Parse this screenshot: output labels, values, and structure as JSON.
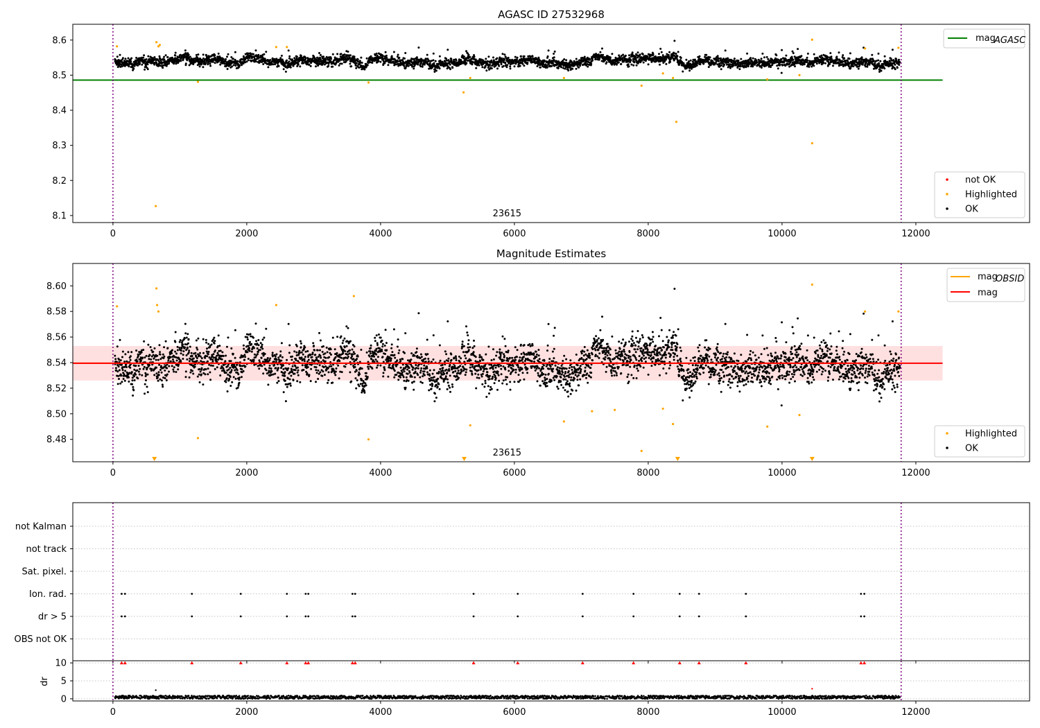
{
  "chart_data": [
    {
      "type": "scatter",
      "title": "AGASC ID 27532968",
      "xlim": [
        -600,
        13700
      ],
      "ylim": [
        8.08,
        8.645
      ],
      "xticks": [
        0,
        2000,
        4000,
        6000,
        8000,
        10000,
        12000
      ],
      "yticks": [
        8.1,
        8.2,
        8.3,
        8.4,
        8.5,
        8.6
      ],
      "ytick_labels": [
        "8.1",
        "8.2",
        "8.3",
        "8.4",
        "8.5",
        "8.6"
      ],
      "obs_boundaries": [
        0,
        11780
      ],
      "annotation": {
        "text": "23615",
        "x": 5890
      },
      "lines": [
        {
          "name": "mag$_{AGASC}$",
          "label_main": "mag",
          "label_sub": "AGASC",
          "y": 8.486,
          "x_range": [
            -600,
            12400
          ],
          "color": "#008000"
        }
      ],
      "series": [
        {
          "name": "not OK",
          "color": "#ff0000",
          "points": []
        },
        {
          "name": "Highlighted",
          "color": "#ffa500",
          "points": [
            [
              60,
              8.582
            ],
            [
              640,
              8.127
            ],
            [
              650,
              8.594
            ],
            [
              680,
              8.582
            ],
            [
              700,
              8.586
            ],
            [
              1270,
              8.481
            ],
            [
              2440,
              8.58
            ],
            [
              2600,
              8.58
            ],
            [
              3820,
              8.479
            ],
            [
              5240,
              8.451
            ],
            [
              5340,
              8.492
            ],
            [
              6740,
              8.492
            ],
            [
              7900,
              8.47
            ],
            [
              8220,
              8.505
            ],
            [
              8420,
              8.367
            ],
            [
              8370,
              8.492
            ],
            [
              9780,
              8.488
            ],
            [
              10260,
              8.5
            ],
            [
              10450,
              8.601
            ],
            [
              10450,
              8.306
            ],
            [
              11240,
              8.576
            ],
            [
              11740,
              8.578
            ]
          ]
        },
        {
          "name": "OK",
          "color": "#000000",
          "points": []
        }
      ],
      "legend_lines_position": "upper-right",
      "legend_points_position": "lower-right"
    },
    {
      "type": "scatter",
      "title": "Magnitude Estimates",
      "xlim": [
        -600,
        13700
      ],
      "ylim": [
        8.4625,
        8.6175
      ],
      "xticks": [
        0,
        2000,
        4000,
        6000,
        8000,
        10000,
        12000
      ],
      "yticks": [
        8.48,
        8.5,
        8.52,
        8.54,
        8.56,
        8.58,
        8.6
      ],
      "ytick_labels": [
        "8.48",
        "8.50",
        "8.52",
        "8.54",
        "8.56",
        "8.58",
        "8.60"
      ],
      "obs_boundaries": [
        0,
        11780
      ],
      "annotation": {
        "text": "23615",
        "x": 5890
      },
      "band": {
        "y_low": 8.526,
        "y_high": 8.553,
        "x_range": [
          -600,
          12400
        ],
        "color": "#ff0000",
        "opacity": 0.12
      },
      "lines": [
        {
          "name": "mag$_{OBSID}$",
          "label_main": "mag",
          "label_sub": "OBSID",
          "y": 8.5395,
          "x_range": [
            -600,
            11790
          ],
          "color": "#ffa500"
        },
        {
          "name": "mag",
          "label_main": "mag",
          "label_sub": "",
          "y": 8.5395,
          "x_range": [
            -600,
            12400
          ],
          "color": "#ff0000"
        }
      ],
      "series": [
        {
          "name": "Highlighted",
          "color": "#ffa500",
          "points": [
            [
              60,
              8.584
            ],
            [
              650,
              8.598
            ],
            [
              660,
              8.585
            ],
            [
              680,
              8.58
            ],
            [
              1270,
              8.481
            ],
            [
              2440,
              8.585
            ],
            [
              3600,
              8.592
            ],
            [
              3820,
              8.48
            ],
            [
              5340,
              8.491
            ],
            [
              6740,
              8.494
            ],
            [
              7160,
              8.502
            ],
            [
              7500,
              8.503
            ],
            [
              7900,
              8.471
            ],
            [
              8220,
              8.504
            ],
            [
              8370,
              8.492
            ],
            [
              9780,
              8.49
            ],
            [
              10260,
              8.499
            ],
            [
              10450,
              8.601
            ],
            [
              11240,
              8.58
            ],
            [
              11740,
              8.58
            ]
          ]
        },
        {
          "name": "OK",
          "color": "#000000",
          "points": []
        }
      ],
      "offscale_markers_x": [
        620,
        5250,
        8440,
        10450
      ],
      "legend_position": "upper-right / lower-right"
    },
    {
      "type": "scatter",
      "title": "",
      "xlim": [
        -600,
        13700
      ],
      "xticks": [
        0,
        2000,
        4000,
        6000,
        8000,
        10000,
        12000
      ],
      "categories": [
        "OBS not OK",
        "dr > 5",
        "Ion. rad.",
        "Sat. pixel.",
        "not track",
        "not Kalman"
      ],
      "obs_boundaries": [
        0,
        11780
      ],
      "flag_x": [
        130,
        180,
        1180,
        1910,
        2600,
        2880,
        2920,
        3580,
        3620,
        5390,
        6050,
        7020,
        7780,
        8470,
        8760,
        9460,
        11180,
        11230
      ],
      "flag_rows": [
        "dr > 5",
        "Ion. rad."
      ]
    },
    {
      "type": "scatter",
      "title": "",
      "ylabel": "dr",
      "xlim": [
        -600,
        13700
      ],
      "ylim": [
        -0.6,
        10.6
      ],
      "xticks": [
        0,
        2000,
        4000,
        6000,
        8000,
        10000,
        12000
      ],
      "yticks": [
        0,
        5,
        10
      ],
      "ytick_labels": [
        "0",
        "5",
        "10"
      ],
      "obs_boundaries": [
        0,
        11780
      ],
      "clipped_at_10_x": [
        130,
        180,
        1180,
        1910,
        2600,
        2880,
        2920,
        3580,
        3620,
        5390,
        6050,
        7020,
        7780,
        8470,
        8760,
        9460,
        11180,
        11230
      ],
      "outliers": [
        [
          640,
          2.4
        ],
        [
          10450,
          2.8
        ]
      ],
      "baseline_range": [
        0,
        0.9
      ]
    }
  ],
  "legend_labels": {
    "not_ok": "not OK",
    "highlighted": "Highlighted",
    "ok": "OK"
  }
}
